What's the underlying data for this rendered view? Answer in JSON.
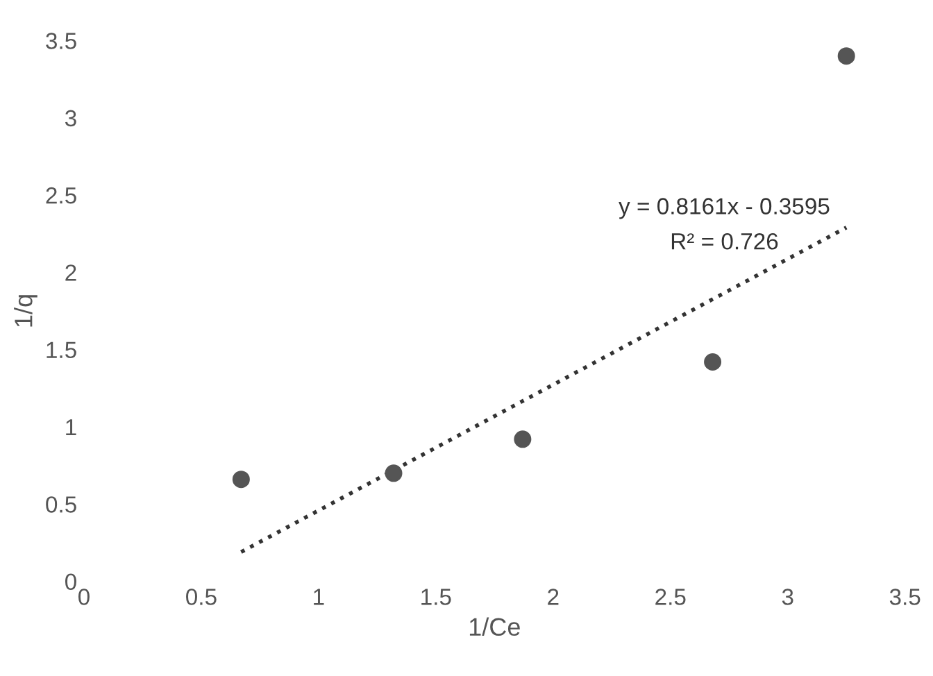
{
  "chart_data": {
    "type": "scatter",
    "xlabel": "1/Ce",
    "ylabel": "1/q",
    "xlim": [
      0,
      3.5
    ],
    "xticks": [
      0,
      0.5,
      1,
      1.5,
      2,
      2.5,
      3,
      3.5
    ],
    "ylim": [
      0,
      3.5
    ],
    "yticks": [
      0,
      0.5,
      1,
      1.5,
      2,
      2.5,
      3,
      3.5
    ],
    "grid": false,
    "marker": "circle",
    "series": [
      {
        "color": "#555555",
        "x": [
          0.67,
          1.32,
          1.87,
          2.68,
          3.25
        ],
        "values": [
          0.66,
          0.7,
          0.92,
          1.42,
          3.4
        ]
      },
      {
        "type": "line",
        "color": "#333333",
        "line_style": "dotted",
        "marker": "none",
        "x": [
          0.67,
          3.25
        ],
        "values": [
          0.19,
          2.29
        ]
      }
    ],
    "annotations": [
      "y = 0.8161x - 0.3595",
      "R² = 0.726"
    ]
  }
}
